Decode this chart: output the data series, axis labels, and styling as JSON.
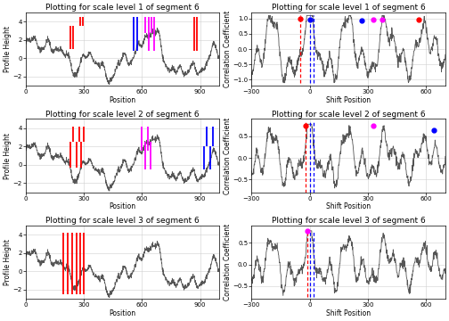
{
  "titles_left": [
    "Plotting for scale level 1 of segment 6",
    "Plotting for scale level 2 of segment 6",
    "Plotting for scale level 3 of segment 6"
  ],
  "titles_right": [
    "Plotting for scale level 1 of segment 6",
    "Plotting for scale level 2 of segment 6",
    "Plotting for scale level 3 of segment 6"
  ],
  "xlabel_left": "Position",
  "ylabel_left": "Profile Height",
  "xlabel_right": "Shift Position",
  "ylabel_right": "Correlation Coefficient",
  "title_fontsize": 6.5,
  "axis_fontsize": 5.5,
  "tick_fontsize": 5,
  "background_color": "#ffffff",
  "grid_color": "#d0d0d0",
  "profile_xlim": [
    0,
    1000
  ],
  "profile_xticks": [
    0,
    300,
    600,
    900
  ],
  "profile_ylim": [
    -3,
    5
  ],
  "profile_yticks": [
    -2,
    0,
    2,
    4
  ],
  "corr_xlim": [
    -300,
    700
  ],
  "corr_xticks": [
    -300,
    0,
    300,
    600
  ],
  "corr_row0_ylim": [
    -1.2,
    1.2
  ],
  "corr_row0_yticks": [
    -1.0,
    -0.5,
    0.0,
    0.5,
    1.0
  ],
  "corr_row1_ylim": [
    -0.8,
    0.9
  ],
  "corr_row1_yticks": [
    -0.5,
    0.0,
    0.5
  ],
  "corr_row2_ylim": [
    -0.8,
    0.9
  ],
  "corr_row2_yticks": [
    -0.5,
    0.0,
    0.5
  ],
  "profile_vlines_row0": [
    [
      230,
      "red",
      1.0,
      3.5
    ],
    [
      245,
      "red",
      1.0,
      3.5
    ],
    [
      280,
      "red",
      3.5,
      4.5
    ],
    [
      295,
      "red",
      3.5,
      4.5
    ],
    [
      555,
      "blue",
      0.8,
      4.5
    ],
    [
      575,
      "blue",
      0.8,
      4.5
    ],
    [
      618,
      "magenta",
      2.8,
      4.5
    ],
    [
      633,
      "magenta",
      0.8,
      4.5
    ],
    [
      648,
      "magenta",
      2.8,
      4.5
    ],
    [
      663,
      "magenta",
      0.8,
      4.5
    ],
    [
      870,
      "red",
      0.8,
      4.5
    ],
    [
      885,
      "red",
      0.8,
      4.5
    ]
  ],
  "profile_vlines_row1": [
    [
      230,
      "red",
      -0.3,
      2.5
    ],
    [
      245,
      "red",
      2.5,
      4.2
    ],
    [
      260,
      "red",
      -0.3,
      2.5
    ],
    [
      275,
      "red",
      2.5,
      4.2
    ],
    [
      285,
      "red",
      -0.3,
      2.5
    ],
    [
      300,
      "red",
      2.5,
      4.2
    ],
    [
      600,
      "magenta",
      1.5,
      4.2
    ],
    [
      615,
      "magenta",
      -0.5,
      2.5
    ],
    [
      630,
      "magenta",
      1.5,
      4.2
    ],
    [
      645,
      "magenta",
      -0.5,
      2.5
    ],
    [
      920,
      "blue",
      -0.5,
      2.0
    ],
    [
      935,
      "blue",
      2.0,
      4.2
    ],
    [
      950,
      "blue",
      -0.5,
      2.0
    ],
    [
      965,
      "blue",
      2.0,
      4.2
    ]
  ],
  "profile_vlines_row2": [
    [
      195,
      "red",
      -2.5,
      4.2
    ],
    [
      215,
      "red",
      -2.5,
      4.2
    ],
    [
      240,
      "red",
      -2.5,
      4.2
    ],
    [
      260,
      "red",
      -2.5,
      4.2
    ],
    [
      280,
      "red",
      -2.5,
      4.2
    ],
    [
      300,
      "red",
      -2.5,
      4.2
    ]
  ],
  "corr_vlines_row0": [
    [
      -50,
      "red",
      -1.1,
      1.1
    ],
    [
      0,
      "blue",
      -1.1,
      1.1
    ],
    [
      20,
      "blue",
      -1.1,
      1.1
    ]
  ],
  "corr_dots_row0": [
    [
      -50,
      1.0,
      "red"
    ],
    [
      0,
      0.97,
      "blue"
    ],
    [
      270,
      0.95,
      "blue"
    ],
    [
      330,
      0.97,
      "magenta"
    ],
    [
      375,
      0.97,
      "magenta"
    ],
    [
      565,
      0.97,
      "red"
    ]
  ],
  "corr_vlines_row1": [
    [
      -20,
      "red",
      -0.8,
      0.85
    ],
    [
      0,
      "blue",
      -0.8,
      0.85
    ],
    [
      20,
      "blue",
      -0.8,
      0.85
    ]
  ],
  "corr_dots_row1": [
    [
      -20,
      0.75,
      "red"
    ],
    [
      330,
      0.75,
      "magenta"
    ],
    [
      640,
      0.65,
      "blue"
    ]
  ],
  "corr_vlines_row2": [
    [
      -10,
      "red",
      -0.75,
      0.8
    ],
    [
      0,
      "blue",
      -0.75,
      0.8
    ],
    [
      20,
      "blue",
      -0.75,
      0.8
    ]
  ],
  "corr_dots_row2": [
    [
      -10,
      0.78,
      "magenta"
    ]
  ]
}
